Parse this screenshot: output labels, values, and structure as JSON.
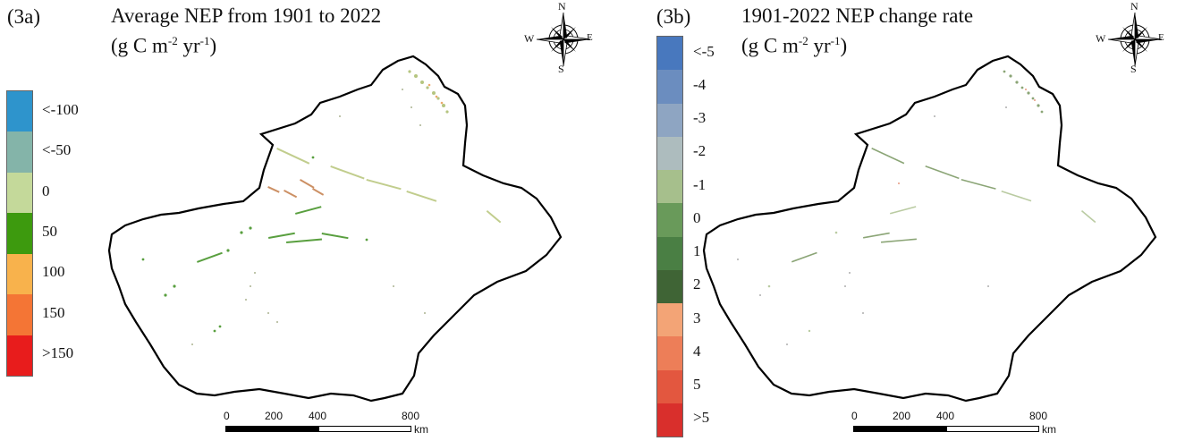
{
  "compass": {
    "n": "N",
    "s": "S",
    "e": "E",
    "w": "W"
  },
  "scale": {
    "ticks": [
      "0",
      "200",
      "400",
      "800"
    ],
    "unit": "km"
  },
  "panel_a": {
    "id": "(3a)",
    "title_line1": "Average NEP from 1901 to 2022",
    "title_line2_pre": "(g C m",
    "title_sup1": "-2",
    "title_mid": " yr",
    "title_sup2": "-1",
    "title_post": ")",
    "legend": [
      {
        "label": "<-100",
        "color": "#2e94cc"
      },
      {
        "label": "<-50",
        "color": "#84b4a9"
      },
      {
        "label": "0",
        "color": "#c4d99a"
      },
      {
        "label": "50",
        "color": "#3d9a0e"
      },
      {
        "label": "100",
        "color": "#f8b24c"
      },
      {
        "label": "150",
        "color": "#f47535"
      },
      {
        "label": ">150",
        "color": "#e81c1c"
      }
    ]
  },
  "panel_b": {
    "id": "(3b)",
    "title_line1": "1901-2022 NEP change rate",
    "title_line2_pre": "(g C m",
    "title_sup1": "-2",
    "title_mid": " yr",
    "title_sup2": "-1",
    "title_post": ")",
    "legend": [
      {
        "label": "<-5",
        "color": "#4878be"
      },
      {
        "label": "-4",
        "color": "#6b8dbf"
      },
      {
        "label": "-3",
        "color": "#8ea5c2"
      },
      {
        "label": "-2",
        "color": "#adbcbe"
      },
      {
        "label": "-1",
        "color": "#a6bf8c"
      },
      {
        "label": "0",
        "color": "#699a5a"
      },
      {
        "label": "1",
        "color": "#4a7f44"
      },
      {
        "label": "2",
        "color": "#3f6435"
      },
      {
        "label": "3",
        "color": "#f3a476"
      },
      {
        "label": "4",
        "color": "#ed7e58"
      },
      {
        "label": "5",
        "color": "#e3573f"
      },
      {
        "label": ">5",
        "color": "#d92f2c"
      }
    ]
  }
}
